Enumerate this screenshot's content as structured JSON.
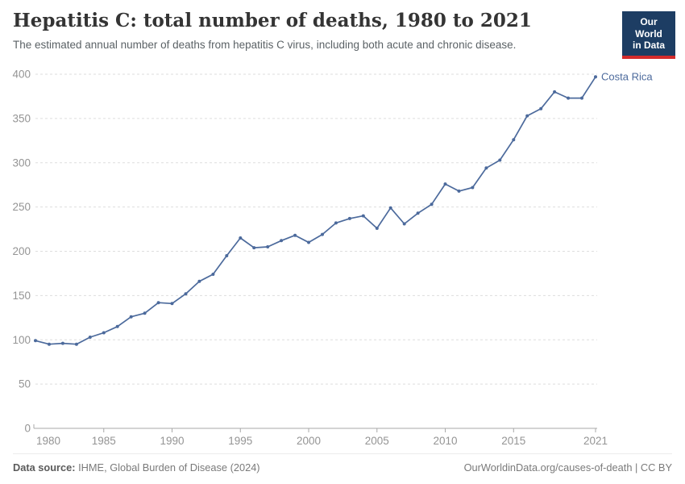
{
  "header": {
    "title": "Hepatitis C: total number of deaths, 1980 to 2021",
    "subtitle": "The estimated annual number of deaths from hepatitis C virus, including both acute and chronic disease.",
    "logo": {
      "line1": "Our World",
      "line2": "in Data"
    }
  },
  "chart_data": {
    "type": "line",
    "title": "Hepatitis C: total number of deaths, 1980 to 2021",
    "xlabel": "",
    "ylabel": "",
    "x_range": [
      1980,
      2021
    ],
    "ylim": [
      0,
      400
    ],
    "yticks": [
      0,
      50,
      100,
      150,
      200,
      250,
      300,
      350,
      400
    ],
    "xticks": [
      1980,
      1985,
      1990,
      1995,
      2000,
      2005,
      2010,
      2015,
      2021
    ],
    "grid": "horizontal-dashed",
    "legend_position": "end-of-line-label",
    "series": [
      {
        "name": "Costa Rica",
        "color": "#4c6a9c",
        "x": [
          1980,
          1981,
          1982,
          1983,
          1984,
          1985,
          1986,
          1987,
          1988,
          1989,
          1990,
          1991,
          1992,
          1993,
          1994,
          1995,
          1996,
          1997,
          1998,
          1999,
          2000,
          2001,
          2002,
          2003,
          2004,
          2005,
          2006,
          2007,
          2008,
          2009,
          2010,
          2011,
          2012,
          2013,
          2014,
          2015,
          2016,
          2017,
          2018,
          2019,
          2020,
          2021
        ],
        "values": [
          99,
          95,
          96,
          95,
          103,
          108,
          115,
          126,
          130,
          142,
          141,
          152,
          166,
          174,
          195,
          215,
          204,
          205,
          212,
          218,
          210,
          219,
          232,
          237,
          240,
          226,
          249,
          231,
          243,
          253,
          276,
          268,
          272,
          294,
          303,
          326,
          353,
          361,
          380,
          373,
          373,
          397
        ]
      }
    ]
  },
  "footer": {
    "source_label": "Data source:",
    "source_value": "IHME, Global Burden of Disease (2024)",
    "credit": "OurWorldinData.org/causes-of-death | CC BY"
  },
  "colors": {
    "line": "#4c6a9c",
    "grid": "#dddddd",
    "axis": "#a8a8a8",
    "tick_text": "#949494",
    "title_text": "#343434",
    "subtitle_text": "#5b6266",
    "logo_bg": "#1d3d63",
    "logo_bar": "#d42b2b"
  }
}
